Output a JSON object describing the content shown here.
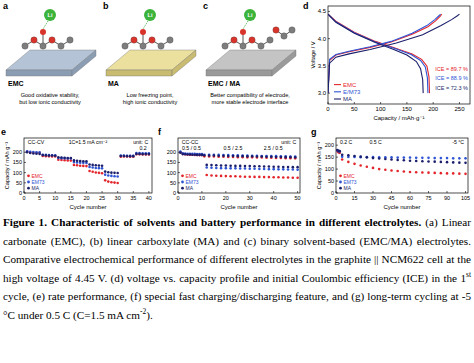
{
  "panels": [
    {
      "label": "a",
      "molecule": "EMC",
      "description": [
        "Good oxidative stability,",
        "but low ionic conductivity"
      ]
    },
    {
      "label": "b",
      "molecule": "MA",
      "description": [
        "Low freezing point,",
        "high ionic conductivity"
      ]
    },
    {
      "label": "c",
      "molecule": "EMC / MA",
      "description": [
        "Better compatibility of electrode,",
        "more stable electrode interface"
      ]
    }
  ],
  "ion_label": "Li",
  "chart_data": [
    {
      "type": "line",
      "title": "d",
      "x_label": "Capacity / mAh·g⁻¹",
      "y_label": "Voltage / V",
      "xlim": [
        0,
        270
      ],
      "xticks": [
        0,
        50,
        100,
        150,
        200,
        250
      ],
      "ylim": [
        2.8,
        4.6
      ],
      "yticks": [
        {
          "value": 3,
          "label": "3.0"
        },
        {
          "value": 3.5,
          "label": "3.5"
        },
        {
          "value": 4,
          "label": "4.0"
        },
        {
          "value": 4.5,
          "label": "4.5"
        }
      ],
      "legend": "lower left",
      "annotations": [
        "ICE = 89.7 %",
        "ICE = 88.9 %",
        "ICE = 72.3 %"
      ],
      "series": [
        {
          "name": "EMC",
          "color": "#e3242b",
          "x": [
            0,
            3,
            15,
            40,
            80,
            120,
            160,
            190,
            205,
            214,
            216,
            216,
            0,
            15,
            50,
            90,
            130,
            160,
            178,
            188,
            192,
            193
          ],
          "values": [
            3.0,
            3.6,
            3.7,
            3.76,
            3.84,
            3.94,
            4.08,
            4.22,
            4.33,
            4.42,
            4.45,
            null,
            4.45,
            4.32,
            4.12,
            3.95,
            3.82,
            3.72,
            3.62,
            3.5,
            3.3,
            3.0
          ]
        },
        {
          "name": "E/M73",
          "color": "#2f55d4",
          "x": [
            0,
            3,
            15,
            40,
            80,
            120,
            160,
            188,
            203,
            212,
            214,
            214,
            0,
            15,
            50,
            90,
            130,
            158,
            176,
            185,
            189,
            190
          ],
          "values": [
            3.0,
            3.62,
            3.71,
            3.77,
            3.85,
            3.95,
            4.1,
            4.24,
            4.35,
            4.43,
            4.45,
            null,
            4.45,
            4.31,
            4.11,
            3.94,
            3.81,
            3.71,
            3.6,
            3.48,
            3.28,
            3.0
          ]
        },
        {
          "name": "MA",
          "color": "#1b1f6b",
          "x": [
            0,
            3,
            15,
            40,
            80,
            130,
            180,
            215,
            235,
            246,
            250,
            250,
            0,
            15,
            50,
            90,
            125,
            150,
            168,
            176,
            180,
            181
          ],
          "values": [
            3.0,
            3.55,
            3.66,
            3.72,
            3.8,
            3.92,
            4.07,
            4.24,
            4.35,
            4.42,
            4.45,
            null,
            4.45,
            4.3,
            4.1,
            3.93,
            3.8,
            3.7,
            3.58,
            3.45,
            3.25,
            3.0
          ]
        }
      ]
    },
    {
      "type": "scatter",
      "marker": "circle",
      "title": "e",
      "x_label": "Cycle number",
      "y_label": "Capacity / mAh g⁻¹",
      "xlim": [
        0,
        41
      ],
      "xticks": [
        0,
        5,
        10,
        15,
        20,
        25,
        30,
        35,
        40
      ],
      "ylim": [
        0,
        270
      ],
      "yticks": [
        0,
        50,
        100,
        150,
        200
      ],
      "legend": "lower left",
      "annotations": [
        "CC-CV",
        "unit: C",
        "1C=1.5 mA cm⁻²",
        "0.2"
      ],
      "x": [
        1,
        2,
        3,
        4,
        5,
        6,
        7,
        8,
        9,
        10,
        11,
        12,
        13,
        14,
        15,
        16,
        17,
        18,
        19,
        20,
        21,
        22,
        23,
        24,
        25,
        26,
        27,
        28,
        29,
        30,
        31,
        32,
        33,
        34,
        35,
        36,
        37,
        38,
        39,
        40
      ],
      "series": [
        {
          "name": "EMC",
          "color": "#e3242b",
          "values": [
            203,
            199,
            198,
            197,
            197,
            182,
            181,
            180,
            179,
            179,
            163,
            162,
            161,
            160,
            159,
            138,
            136,
            134,
            133,
            132,
            108,
            104,
            101,
            99,
            97,
            62,
            56,
            53,
            51,
            49,
            178,
            179,
            179,
            178,
            178,
            190,
            190,
            189,
            189,
            189
          ]
        },
        {
          "name": "EM73",
          "color": "#2f55d4",
          "values": [
            205,
            202,
            201,
            200,
            200,
            188,
            187,
            186,
            185,
            185,
            172,
            171,
            170,
            169,
            169,
            152,
            150,
            149,
            148,
            147,
            128,
            125,
            123,
            122,
            121,
            90,
            86,
            84,
            82,
            81,
            184,
            184,
            183,
            183,
            183,
            196,
            196,
            195,
            195,
            195
          ]
        },
        {
          "name": "MA",
          "color": "#1b1f6b",
          "values": [
            200,
            196,
            194,
            193,
            192,
            186,
            185,
            184,
            184,
            183,
            175,
            174,
            173,
            172,
            172,
            160,
            158,
            157,
            156,
            156,
            140,
            138,
            136,
            135,
            134,
            105,
            102,
            100,
            99,
            98,
            182,
            182,
            181,
            181,
            181,
            192,
            192,
            191,
            191,
            191
          ]
        }
      ]
    },
    {
      "type": "scatter",
      "marker": "circle",
      "title": "f",
      "x_label": "Cycle number",
      "xlim": [
        0,
        51
      ],
      "xticks": [
        0,
        10,
        20,
        30,
        40,
        50
      ],
      "ylim": [
        0,
        270
      ],
      "yticks": [
        0,
        50,
        100,
        150,
        200
      ],
      "legend": "lower left",
      "annotations": [
        "CC-CC",
        "unit: C",
        "0.5 / 0.5",
        "0.5 / 2.5",
        "2.5 / 0.5"
      ],
      "x": [
        1,
        2,
        3,
        4,
        5,
        6,
        7,
        8,
        9,
        10,
        11,
        12,
        13,
        14,
        15,
        16,
        17,
        18,
        19,
        20,
        21,
        22,
        23,
        24,
        25,
        26,
        27,
        28,
        29,
        30,
        31,
        32,
        33,
        34,
        35,
        36,
        37,
        38,
        39,
        40,
        41,
        42,
        43,
        44,
        45,
        46,
        47,
        48,
        49,
        50
      ],
      "series": [
        {
          "name": "EMC",
          "color": "#e3242b",
          "values": [
            200,
            192,
            190,
            189,
            188,
            188,
            187,
            187,
            186,
            186,
            180,
            88,
            179,
            86,
            179,
            85,
            178,
            84,
            178,
            83,
            177,
            82,
            177,
            82,
            176,
            81,
            176,
            80,
            175,
            80,
            175,
            79,
            174,
            79,
            174,
            78,
            173,
            78,
            173,
            77,
            172,
            77,
            172,
            76,
            171,
            76,
            171,
            75,
            170,
            75
          ]
        },
        {
          "name": "EM73",
          "color": "#2f55d4",
          "values": [
            203,
            195,
            194,
            193,
            193,
            192,
            192,
            191,
            191,
            191,
            188,
            125,
            188,
            124,
            187,
            123,
            187,
            122,
            186,
            122,
            186,
            121,
            185,
            121,
            185,
            120,
            184,
            120,
            184,
            119,
            183,
            119,
            183,
            118,
            182,
            118,
            182,
            117,
            181,
            117,
            181,
            116,
            180,
            116,
            180,
            115,
            179,
            115,
            179,
            114
          ]
        },
        {
          "name": "MA",
          "color": "#1b1f6b",
          "values": [
            198,
            191,
            190,
            189,
            189,
            188,
            188,
            187,
            187,
            187,
            185,
            138,
            184,
            137,
            184,
            136,
            183,
            135,
            183,
            135,
            182,
            134,
            182,
            133,
            181,
            133,
            181,
            132,
            180,
            132,
            180,
            131,
            179,
            131,
            179,
            130,
            178,
            130,
            178,
            129,
            177,
            129,
            177,
            128,
            176,
            128,
            176,
            127,
            175,
            127
          ]
        }
      ]
    },
    {
      "type": "scatter",
      "marker": "circle",
      "title": "g",
      "x_label": "Cycle number",
      "y_label": "Capacity / mAh g⁻¹",
      "xlim": [
        0,
        107
      ],
      "xticks": [
        0,
        15,
        30,
        45,
        60,
        75,
        90,
        105
      ],
      "ylim": [
        0,
        230
      ],
      "yticks": [
        0,
        50,
        100,
        150,
        200
      ],
      "legend": "lower left",
      "annotations": [
        "0.2 C",
        "0.5 C",
        "-5 °C"
      ],
      "x": [
        1,
        2,
        3,
        5,
        10,
        15,
        20,
        25,
        30,
        35,
        40,
        45,
        50,
        55,
        60,
        65,
        70,
        75,
        80,
        85,
        90,
        95,
        100,
        105
      ],
      "series": [
        {
          "name": "EMC",
          "color": "#e3242b",
          "values": [
            175,
            170,
            168,
            140,
            130,
            122,
            115,
            110,
            105,
            100,
            97,
            94,
            92,
            90,
            88,
            87,
            86,
            85,
            84,
            83,
            82,
            82,
            81,
            80
          ]
        },
        {
          "name": "EM73",
          "color": "#2f55d4",
          "values": [
            178,
            175,
            174,
            152,
            151,
            151,
            150,
            150,
            150,
            149,
            149,
            149,
            148,
            148,
            148,
            147,
            147,
            147,
            146,
            146,
            146,
            145,
            145,
            145
          ]
        },
        {
          "name": "MA",
          "color": "#1b1f6b",
          "values": [
            180,
            176,
            175,
            160,
            158,
            155,
            152,
            149,
            146,
            144,
            142,
            140,
            138,
            137,
            135,
            134,
            133,
            132,
            131,
            130,
            129,
            128,
            127,
            126
          ]
        }
      ]
    }
  ],
  "caption": {
    "title": "Figure 1. Characteristic of solvents and battery performance in different electrolytes.",
    "body": [
      {
        "text": " (a) Linear carbonate (EMC), (b) linear carboxylate (MA) and (c) binary solvent-based (EMC/MA) electrolytes. Comparative electrochemical performance of different electrolytes in the graphite || NCM622 cell at the high voltage of 4.45 V. (d) voltage vs. capacity profile and initial Coulombic efficiency (ICE) in the 1",
        "superscript": false
      },
      {
        "text": "st",
        "superscript": true
      },
      {
        "text": " cycle, (e) rate performance, (f) special fast charging/discharging feature, and (g) long-term cycling at -5 °C under 0.5 C (C=1.5 mA cm",
        "superscript": false
      },
      {
        "text": "-2",
        "superscript": true
      },
      {
        "text": ").",
        "superscript": false
      }
    ]
  }
}
